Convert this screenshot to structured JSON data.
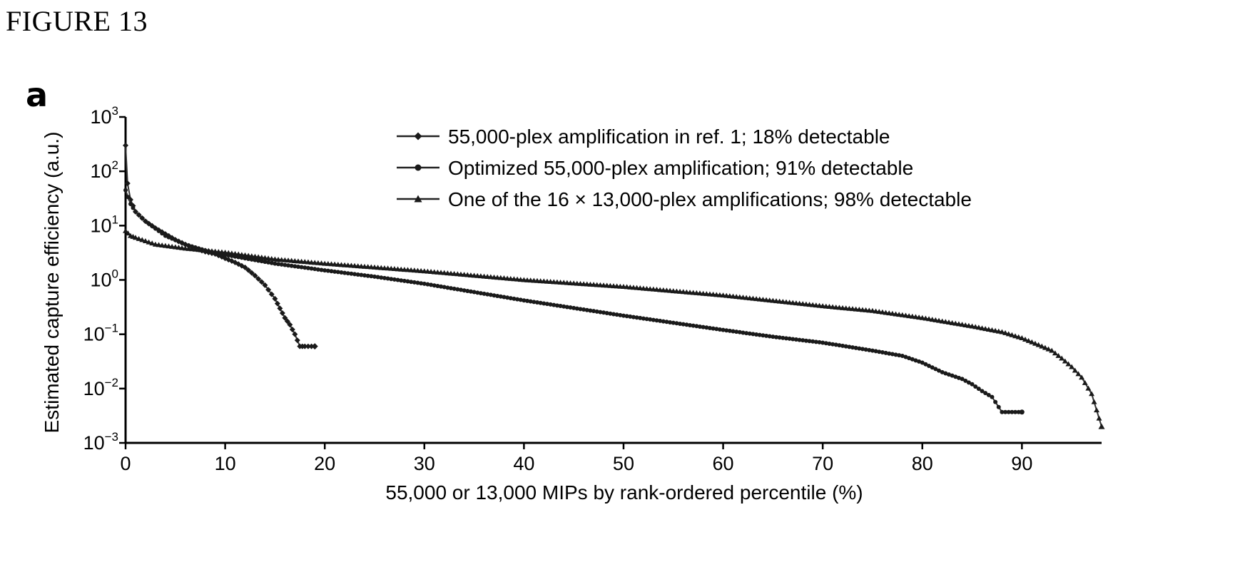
{
  "figure_label": "FIGURE 13",
  "panel_label": "a",
  "chart_data": {
    "type": "scatter",
    "title": "",
    "xlabel": "55,000 or 13,000 MIPs by rank-ordered percentile (%)",
    "ylabel": "Estimated capture efficiency (a.u.)",
    "xlim": [
      0,
      98
    ],
    "ylim": [
      0.001,
      1000
    ],
    "yscale": "log",
    "x_ticks": [
      0,
      10,
      20,
      30,
      40,
      50,
      60,
      70,
      80,
      90
    ],
    "x_tick_labels": [
      "0",
      "10",
      "20",
      "30",
      "40",
      "50",
      "60",
      "70",
      "80",
      "90"
    ],
    "y_ticks": [
      0.001,
      0.01,
      0.1,
      1,
      10,
      100,
      1000
    ],
    "y_tick_labels": [
      {
        "base": "10",
        "exp": "−3"
      },
      {
        "base": "10",
        "exp": "−2"
      },
      {
        "base": "10",
        "exp": "−1"
      },
      {
        "base": "10",
        "exp": "0"
      },
      {
        "base": "10",
        "exp": "1"
      },
      {
        "base": "10",
        "exp": "2"
      },
      {
        "base": "10",
        "exp": "3"
      }
    ],
    "grid": false,
    "legend_position": "top-right",
    "series": [
      {
        "name": "55,000-plex amplification in ref. 1; 18% detectable",
        "marker": "diamond",
        "x": [
          0,
          0.2,
          0.5,
          1,
          2,
          3,
          4,
          5,
          6,
          7,
          8,
          9,
          10,
          11,
          12,
          13,
          14,
          15,
          15.5,
          16,
          16.5,
          17,
          17.5,
          18,
          19
        ],
        "y": [
          300,
          60,
          30,
          18,
          12,
          9,
          7,
          5.5,
          4.5,
          3.8,
          3.3,
          3.0,
          2.5,
          2.1,
          1.7,
          1.2,
          0.8,
          0.45,
          0.3,
          0.2,
          0.15,
          0.1,
          0.06,
          0.06,
          0.06
        ]
      },
      {
        "name": "Optimized 55,000-plex amplification; 91% detectable",
        "marker": "circle",
        "x": [
          0,
          0.5,
          1,
          2,
          4,
          6,
          8,
          10,
          15,
          20,
          25,
          30,
          40,
          50,
          60,
          65,
          70,
          75,
          78,
          80,
          82,
          84,
          85,
          86,
          87,
          88,
          89,
          90
        ],
        "y": [
          45,
          25,
          18,
          12,
          6.5,
          4.5,
          3.5,
          2.9,
          2.0,
          1.5,
          1.15,
          0.85,
          0.42,
          0.22,
          0.12,
          0.09,
          0.07,
          0.05,
          0.04,
          0.03,
          0.02,
          0.015,
          0.012,
          0.009,
          0.007,
          0.0037,
          0.0037,
          0.0037
        ]
      },
      {
        "name": "One of the 16 × 13,000-plex amplifications; 98% detectable",
        "marker": "triangle",
        "x": [
          0,
          0.5,
          1,
          3,
          6,
          10,
          15,
          20,
          30,
          40,
          50,
          60,
          70,
          75,
          80,
          85,
          88,
          90,
          92,
          93,
          94,
          95,
          96,
          97,
          97.5,
          98
        ],
        "y": [
          8,
          6.5,
          6,
          4.5,
          3.8,
          3.2,
          2.4,
          2.0,
          1.45,
          1.0,
          0.75,
          0.52,
          0.33,
          0.27,
          0.2,
          0.14,
          0.11,
          0.085,
          0.06,
          0.05,
          0.036,
          0.025,
          0.016,
          0.008,
          0.004,
          0.002
        ]
      }
    ]
  }
}
